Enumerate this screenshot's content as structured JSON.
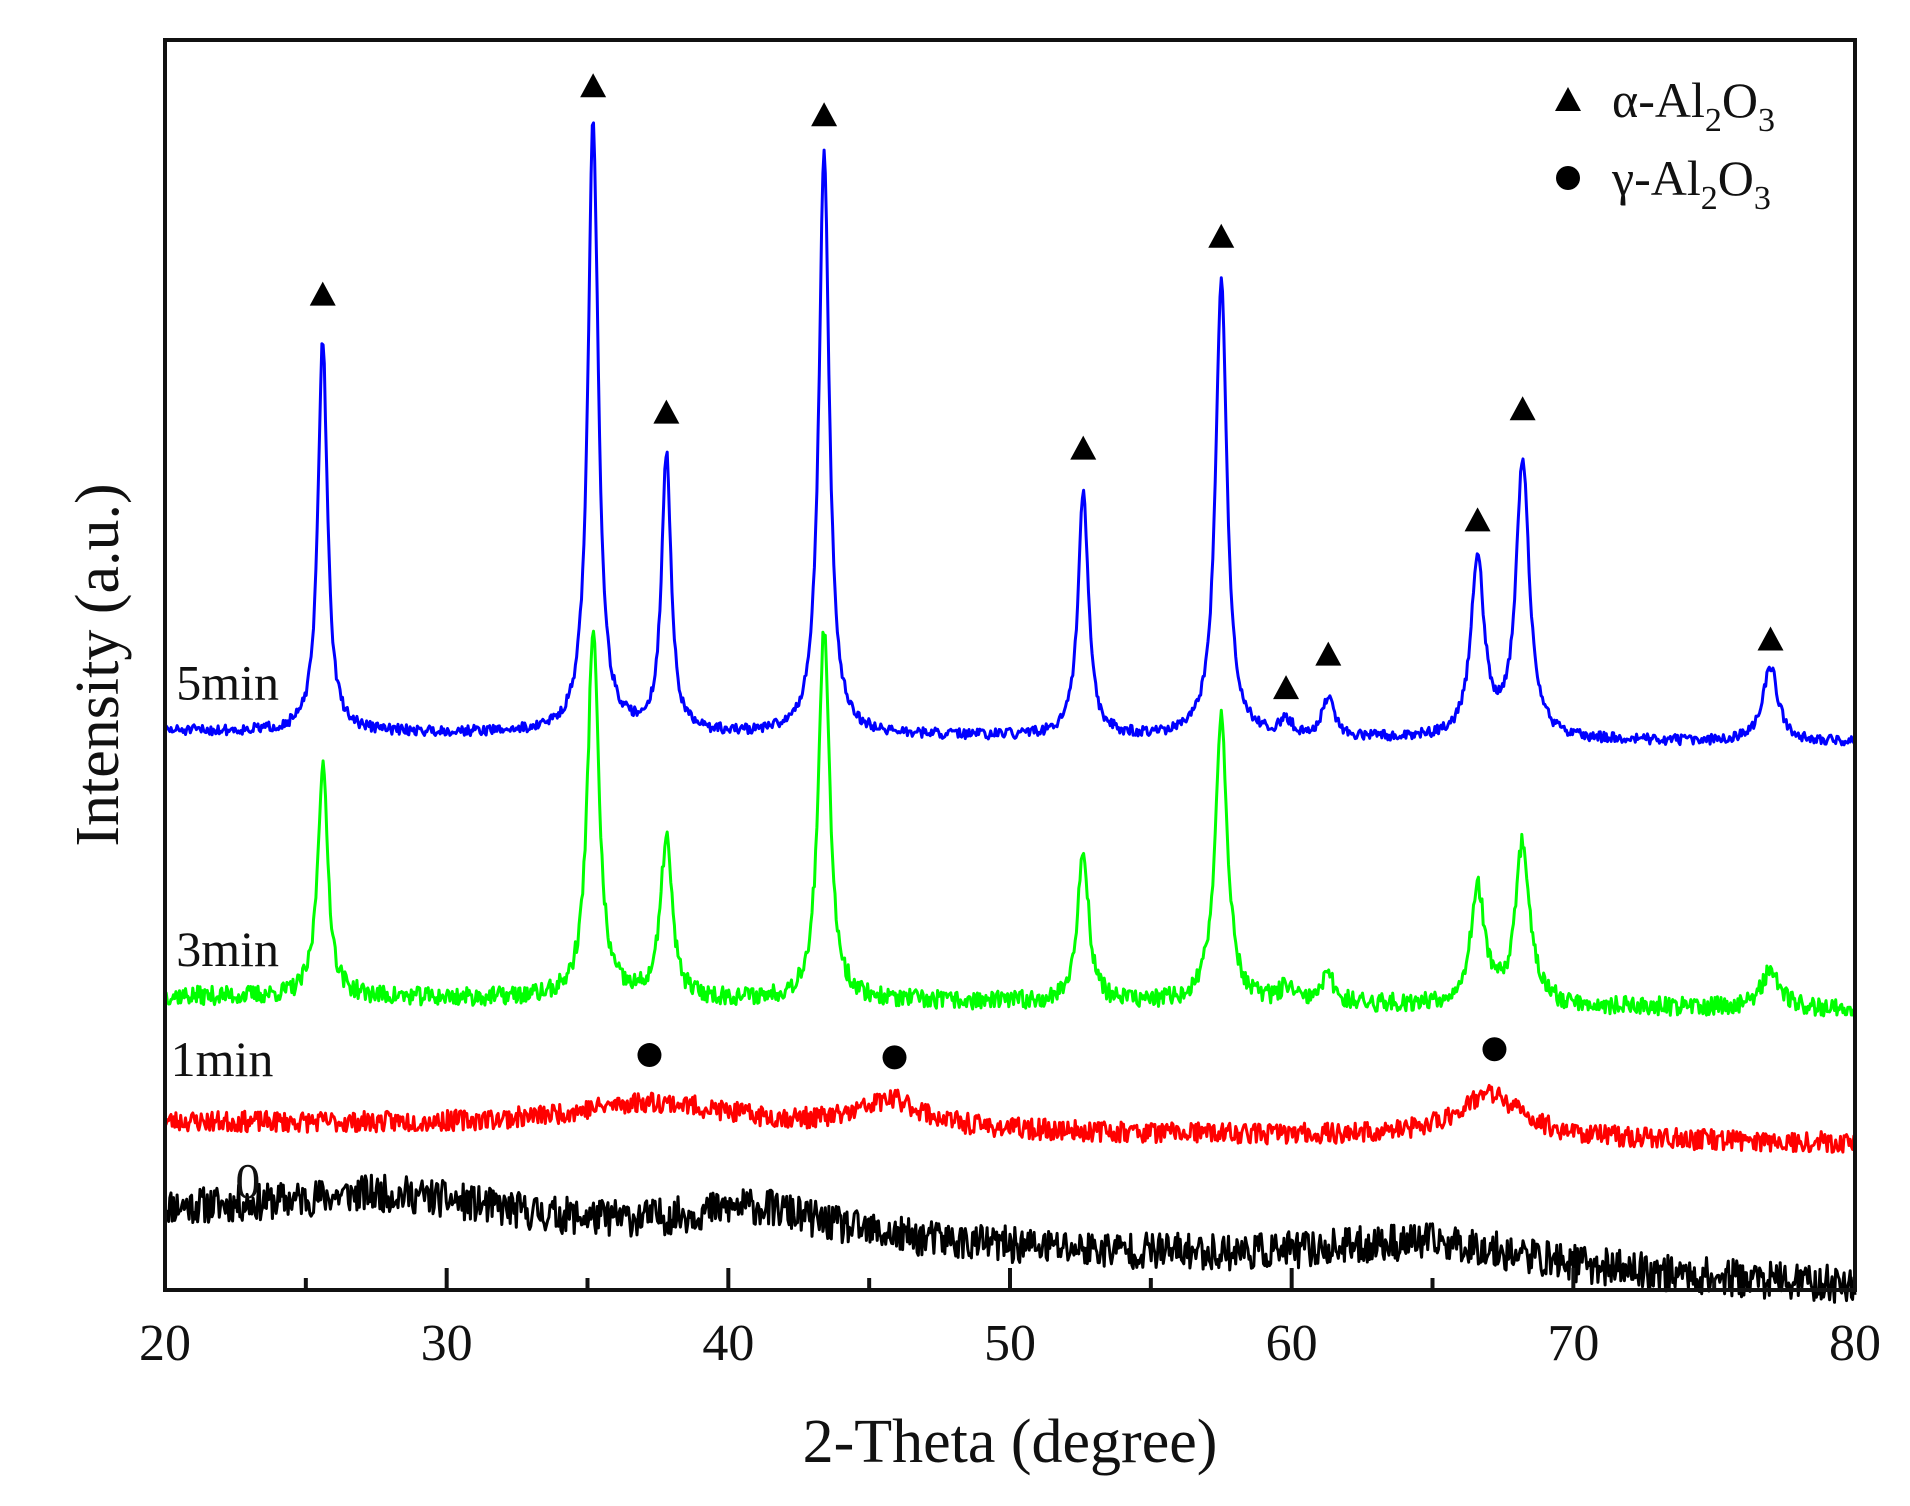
{
  "chart_data": {
    "type": "line",
    "title": "",
    "xlabel": "2-Theta (degree)",
    "ylabel": "Intensity (a.u.)",
    "xlim": [
      20,
      80
    ],
    "x_ticks": [
      20,
      30,
      40,
      50,
      60,
      70,
      80
    ],
    "x_tick_labels": [
      "20",
      "30",
      "40",
      "50",
      "60",
      "70",
      "80"
    ],
    "y_ticks": false,
    "grid": false,
    "legend": {
      "position": "top-right",
      "entries": [
        {
          "marker": "triangle",
          "label": "α-Al2O3",
          "symbol": "α-Al",
          "sub1": "2",
          "mid": "O",
          "sub2": "3"
        },
        {
          "marker": "circle",
          "label": "γ-Al2O3",
          "symbol": "γ-Al",
          "sub1": "2",
          "mid": "O",
          "sub2": "3"
        }
      ]
    },
    "series": [
      {
        "name": "0",
        "label": "0",
        "color": "#000000",
        "baseline_start": 6.5,
        "baseline_end": 0.2,
        "noise": 1.6,
        "seed": 11,
        "peaks": [
          {
            "x": 28,
            "h": 2.5,
            "w": 5.0
          },
          {
            "x": 41,
            "h": 2.5,
            "w": 3.0
          },
          {
            "x": 65,
            "h": 2.3,
            "w": 4.5
          }
        ],
        "label_pos": {
          "x": 22.5,
          "y": 8.0
        }
      },
      {
        "name": "1min",
        "label": "1min",
        "color": "#ff0000",
        "baseline_start": 14.5,
        "baseline_end": 12.7,
        "noise": 0.9,
        "seed": 23,
        "peaks": [
          {
            "x": 37.3,
            "h": 2.2,
            "w": 3.5
          },
          {
            "x": 45.8,
            "h": 2.4,
            "w": 1.4
          },
          {
            "x": 67.0,
            "h": 3.8,
            "w": 1.4
          }
        ],
        "label_pos": {
          "x": 20.2,
          "y": 18.5
        }
      },
      {
        "name": "3min",
        "label": "3min",
        "color": "#00ff00",
        "baseline_start": 25.4,
        "baseline_end": 24.3,
        "noise": 0.8,
        "seed": 37,
        "peaks": [
          {
            "x": 25.6,
            "h": 20.0,
            "w": 0.22
          },
          {
            "x": 35.2,
            "h": 32.0,
            "w": 0.24
          },
          {
            "x": 37.8,
            "h": 14.0,
            "w": 0.24
          },
          {
            "x": 43.4,
            "h": 32.0,
            "w": 0.24
          },
          {
            "x": 52.6,
            "h": 13.0,
            "w": 0.24
          },
          {
            "x": 57.5,
            "h": 25.0,
            "w": 0.26
          },
          {
            "x": 59.8,
            "h": 1.3,
            "w": 0.25
          },
          {
            "x": 61.3,
            "h": 2.3,
            "w": 0.28
          },
          {
            "x": 66.6,
            "h": 10.0,
            "w": 0.3
          },
          {
            "x": 68.2,
            "h": 14.0,
            "w": 0.3
          },
          {
            "x": 77.0,
            "h": 3.5,
            "w": 0.35
          }
        ],
        "label_pos": {
          "x": 20.4,
          "y": 28.0
        }
      },
      {
        "name": "5min",
        "label": "5min",
        "color": "#0000ff",
        "baseline_start": 48.3,
        "baseline_end": 47.3,
        "noise": 0.45,
        "seed": 51,
        "peaks": [
          {
            "x": 25.6,
            "h": 34.0,
            "w": 0.2
          },
          {
            "x": 35.2,
            "h": 53.0,
            "w": 0.22
          },
          {
            "x": 37.8,
            "h": 24.0,
            "w": 0.2
          },
          {
            "x": 43.4,
            "h": 50.5,
            "w": 0.22
          },
          {
            "x": 52.6,
            "h": 21.0,
            "w": 0.22
          },
          {
            "x": 57.5,
            "h": 39.5,
            "w": 0.24
          },
          {
            "x": 59.8,
            "h": 1.3,
            "w": 0.25
          },
          {
            "x": 61.3,
            "h": 3.3,
            "w": 0.26
          },
          {
            "x": 66.6,
            "h": 15.5,
            "w": 0.28
          },
          {
            "x": 68.2,
            "h": 24.0,
            "w": 0.28
          },
          {
            "x": 77.0,
            "h": 6.5,
            "w": 0.32
          }
        ],
        "label_pos": {
          "x": 20.4,
          "y": 51.0
        }
      }
    ],
    "annotations": [
      {
        "marker": "triangle",
        "x": 25.6,
        "y": 86.0
      },
      {
        "marker": "triangle",
        "x": 35.2,
        "y": 104.0
      },
      {
        "marker": "triangle",
        "x": 37.8,
        "y": 75.8
      },
      {
        "marker": "triangle",
        "x": 43.4,
        "y": 101.5
      },
      {
        "marker": "triangle",
        "x": 52.6,
        "y": 72.7
      },
      {
        "marker": "triangle",
        "x": 57.5,
        "y": 91.0
      },
      {
        "marker": "triangle",
        "x": 59.8,
        "y": 52.0
      },
      {
        "marker": "triangle",
        "x": 61.3,
        "y": 54.9
      },
      {
        "marker": "triangle",
        "x": 66.6,
        "y": 66.5
      },
      {
        "marker": "triangle",
        "x": 68.2,
        "y": 76.1
      },
      {
        "marker": "triangle",
        "x": 77.0,
        "y": 56.2
      },
      {
        "marker": "circle",
        "x": 37.2,
        "y": 20.3
      },
      {
        "marker": "circle",
        "x": 45.9,
        "y": 20.1
      },
      {
        "marker": "circle",
        "x": 67.2,
        "y": 20.8
      }
    ],
    "ylim": [
      0,
      108
    ]
  }
}
